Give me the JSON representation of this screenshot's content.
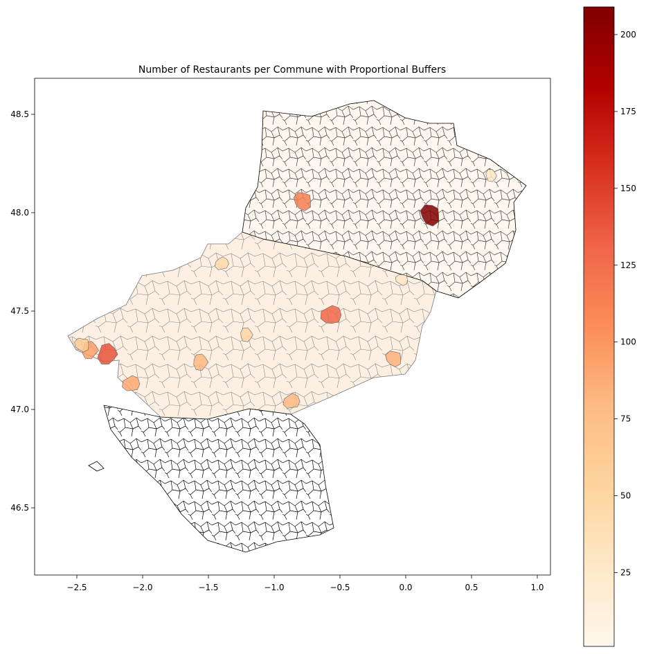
{
  "chart_data": {
    "type": "choropleth",
    "title": "Number of Restaurants per Commune with Proportional Buffers",
    "xlabel": "",
    "ylabel": "",
    "xlim": [
      -2.82,
      1.12
    ],
    "ylim": [
      46.155,
      48.68
    ],
    "xticks": [
      -2.5,
      -2.0,
      -1.5,
      -1.0,
      -0.5,
      0.0,
      0.5,
      1.0
    ],
    "xtick_labels": [
      "−2.5",
      "−2.0",
      "−1.5",
      "−1.0",
      "−0.5",
      "0.0",
      "0.5",
      "1.0"
    ],
    "yticks": [
      46.5,
      47.0,
      47.5,
      48.0,
      48.5
    ],
    "ytick_labels": [
      "46.5",
      "47.0",
      "47.5",
      "48.0",
      "48.5"
    ],
    "colormap": "OrRd",
    "colorbar": {
      "range": [
        1,
        209
      ],
      "ticks": [
        25,
        50,
        75,
        100,
        125,
        150,
        175,
        200
      ],
      "tick_labels": [
        "25",
        "50",
        "75",
        "100",
        "125",
        "150",
        "175",
        "200"
      ],
      "placement": "right"
    },
    "highlighted_communes": [
      {
        "lon": 0.19,
        "lat": 47.99,
        "value": 209
      },
      {
        "lon": -2.27,
        "lat": 47.28,
        "value": 140
      },
      {
        "lon": -0.57,
        "lat": 47.48,
        "value": 130
      },
      {
        "lon": -0.78,
        "lat": 48.06,
        "value": 115
      },
      {
        "lon": -2.4,
        "lat": 47.3,
        "value": 95
      },
      {
        "lon": -2.09,
        "lat": 47.13,
        "value": 90
      },
      {
        "lon": -0.09,
        "lat": 47.26,
        "value": 85
      },
      {
        "lon": -1.56,
        "lat": 47.24,
        "value": 80
      },
      {
        "lon": -0.87,
        "lat": 47.04,
        "value": 80
      },
      {
        "lon": -2.46,
        "lat": 47.33,
        "value": 65
      },
      {
        "lon": -1.21,
        "lat": 47.38,
        "value": 50
      },
      {
        "lon": -1.4,
        "lat": 47.74,
        "value": 45
      },
      {
        "lon": -0.03,
        "lat": 47.66,
        "value": 30
      },
      {
        "lon": 0.65,
        "lat": 48.19,
        "value": 30
      }
    ]
  }
}
